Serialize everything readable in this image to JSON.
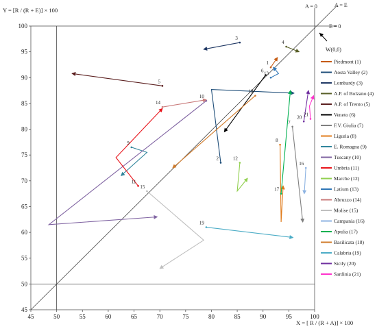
{
  "chart_data": {
    "type": "scatter",
    "title": "",
    "xlabel": "X = [ R / (R + A)] × 100",
    "ylabel": "Y = [R / (R + E)] × 100",
    "xlim": [
      45,
      100
    ],
    "ylim": [
      45,
      100
    ],
    "xticks": [
      45,
      50,
      55,
      60,
      65,
      70,
      75,
      80,
      85,
      90,
      95,
      100
    ],
    "yticks": [
      45,
      50,
      55,
      60,
      65,
      70,
      75,
      80,
      85,
      90,
      95,
      100
    ],
    "grid": false,
    "legend_position": "right",
    "reference_lines": [
      {
        "label": "A = 0",
        "x": 100
      },
      {
        "label": "A = E",
        "diagonal": true
      },
      {
        "label": "E = 0",
        "y": 100
      }
    ],
    "extra_lines": [
      {
        "x": 50
      },
      {
        "y": 50
      }
    ],
    "origin_marker": {
      "label": "W(0,0)"
    },
    "series": [
      {
        "name": "Piedmont (1)",
        "label": "1",
        "color": "#c55a11",
        "x": [
          91.5,
          92.8
        ],
        "y": [
          92.0,
          93.9
        ]
      },
      {
        "name": "Aosta Valley (2)",
        "label": "2",
        "color": "#1f4e79",
        "x": [
          81.8,
          80.0,
          96.0
        ],
        "y": [
          73.5,
          87.7,
          87.0
        ]
      },
      {
        "name": "Lombardy (3)",
        "label": "3",
        "color": "#203864",
        "x": [
          85.5,
          78.5
        ],
        "y": [
          96.8,
          95.5
        ]
      },
      {
        "name": "A.P. of Bolzano (4)",
        "label": "4",
        "color": "#595f28",
        "x": [
          94.5,
          97.0
        ],
        "y": [
          96.0,
          95.0
        ]
      },
      {
        "name": "A.P. of Trento (5)",
        "label": "5",
        "color": "#5b1f1f",
        "x": [
          70.5,
          53.0
        ],
        "y": [
          88.4,
          90.8
        ]
      },
      {
        "name": "Veneto (6)",
        "label": "6",
        "color": "#000000",
        "x": [
          90.5,
          82.5
        ],
        "y": [
          90.5,
          79.5
        ]
      },
      {
        "name": "F.V. Giulia (7)",
        "label": "7",
        "color": "#7f7f7f",
        "x": [
          95.7,
          97.7
        ],
        "y": [
          80.5,
          62.0
        ]
      },
      {
        "name": "Liguria (8)",
        "label": "8",
        "color": "#e07b1b",
        "x": [
          93.3,
          93.5,
          93.9
        ],
        "y": [
          77.0,
          62.0,
          69.0
        ]
      },
      {
        "name": "E. Romagna (9)",
        "label": "9",
        "color": "#31859c",
        "x": [
          64.5,
          67.5,
          62.5
        ],
        "y": [
          76.5,
          75.5,
          71.0
        ]
      },
      {
        "name": "Tuscany (10)",
        "label": "10",
        "color": "#8064a2",
        "x": [
          79.0,
          48.5,
          69.5
        ],
        "y": [
          85.5,
          61.5,
          63.0
        ]
      },
      {
        "name": "Umbria (11)",
        "label": "11",
        "color": "#e8141b",
        "x": [
          65.8,
          61.5,
          70.5
        ],
        "y": [
          69.0,
          74.5,
          84.0
        ]
      },
      {
        "name": "Marche (12)",
        "label": "12",
        "color": "#92d050",
        "x": [
          85.5,
          85.0,
          87.0
        ],
        "y": [
          73.5,
          68.0,
          70.5
        ]
      },
      {
        "name": "Latium (13)",
        "label": "13",
        "color": "#2e75b6",
        "x": [
          91.5,
          93.0,
          92.0
        ],
        "y": [
          90.0,
          90.8,
          92.0
        ]
      },
      {
        "name": "Abruzzo (14)",
        "label": "14",
        "color": "#c97b7b",
        "x": [
          70.5,
          79.0
        ],
        "y": [
          84.3,
          85.7
        ]
      },
      {
        "name": "Molise (15)",
        "label": "15",
        "color": "#bfbfbf",
        "x": [
          67.5,
          78.5,
          70.0
        ],
        "y": [
          68.0,
          58.5,
          53.0
        ]
      },
      {
        "name": "Campania (16)",
        "label": "16",
        "color": "#8db3e2",
        "x": [
          98.3,
          98.0
        ],
        "y": [
          72.5,
          67.5
        ]
      },
      {
        "name": "Apulia (17)",
        "label": "17",
        "color": "#00b050",
        "x": [
          93.5,
          95.3
        ],
        "y": [
          67.5,
          87.5
        ]
      },
      {
        "name": "Basilicata (18)",
        "label": "18",
        "color": "#d07b2b",
        "x": [
          88.5,
          72.5
        ],
        "y": [
          86.5,
          72.5
        ]
      },
      {
        "name": "Calabria (19)",
        "label": "19",
        "color": "#4bacc6",
        "x": [
          79.0,
          95.8
        ],
        "y": [
          61.0,
          59.0
        ]
      },
      {
        "name": "Sicily (20)",
        "label": "20",
        "color": "#7030a0",
        "x": [
          97.9,
          98.8
        ],
        "y": [
          81.5,
          87.5
        ]
      },
      {
        "name": "Sardinia (21)",
        "label": "21",
        "color": "#ff33cc",
        "x": [
          99.2,
          99.0,
          99.8
        ],
        "y": [
          82.0,
          84.5,
          86.5
        ]
      }
    ]
  }
}
